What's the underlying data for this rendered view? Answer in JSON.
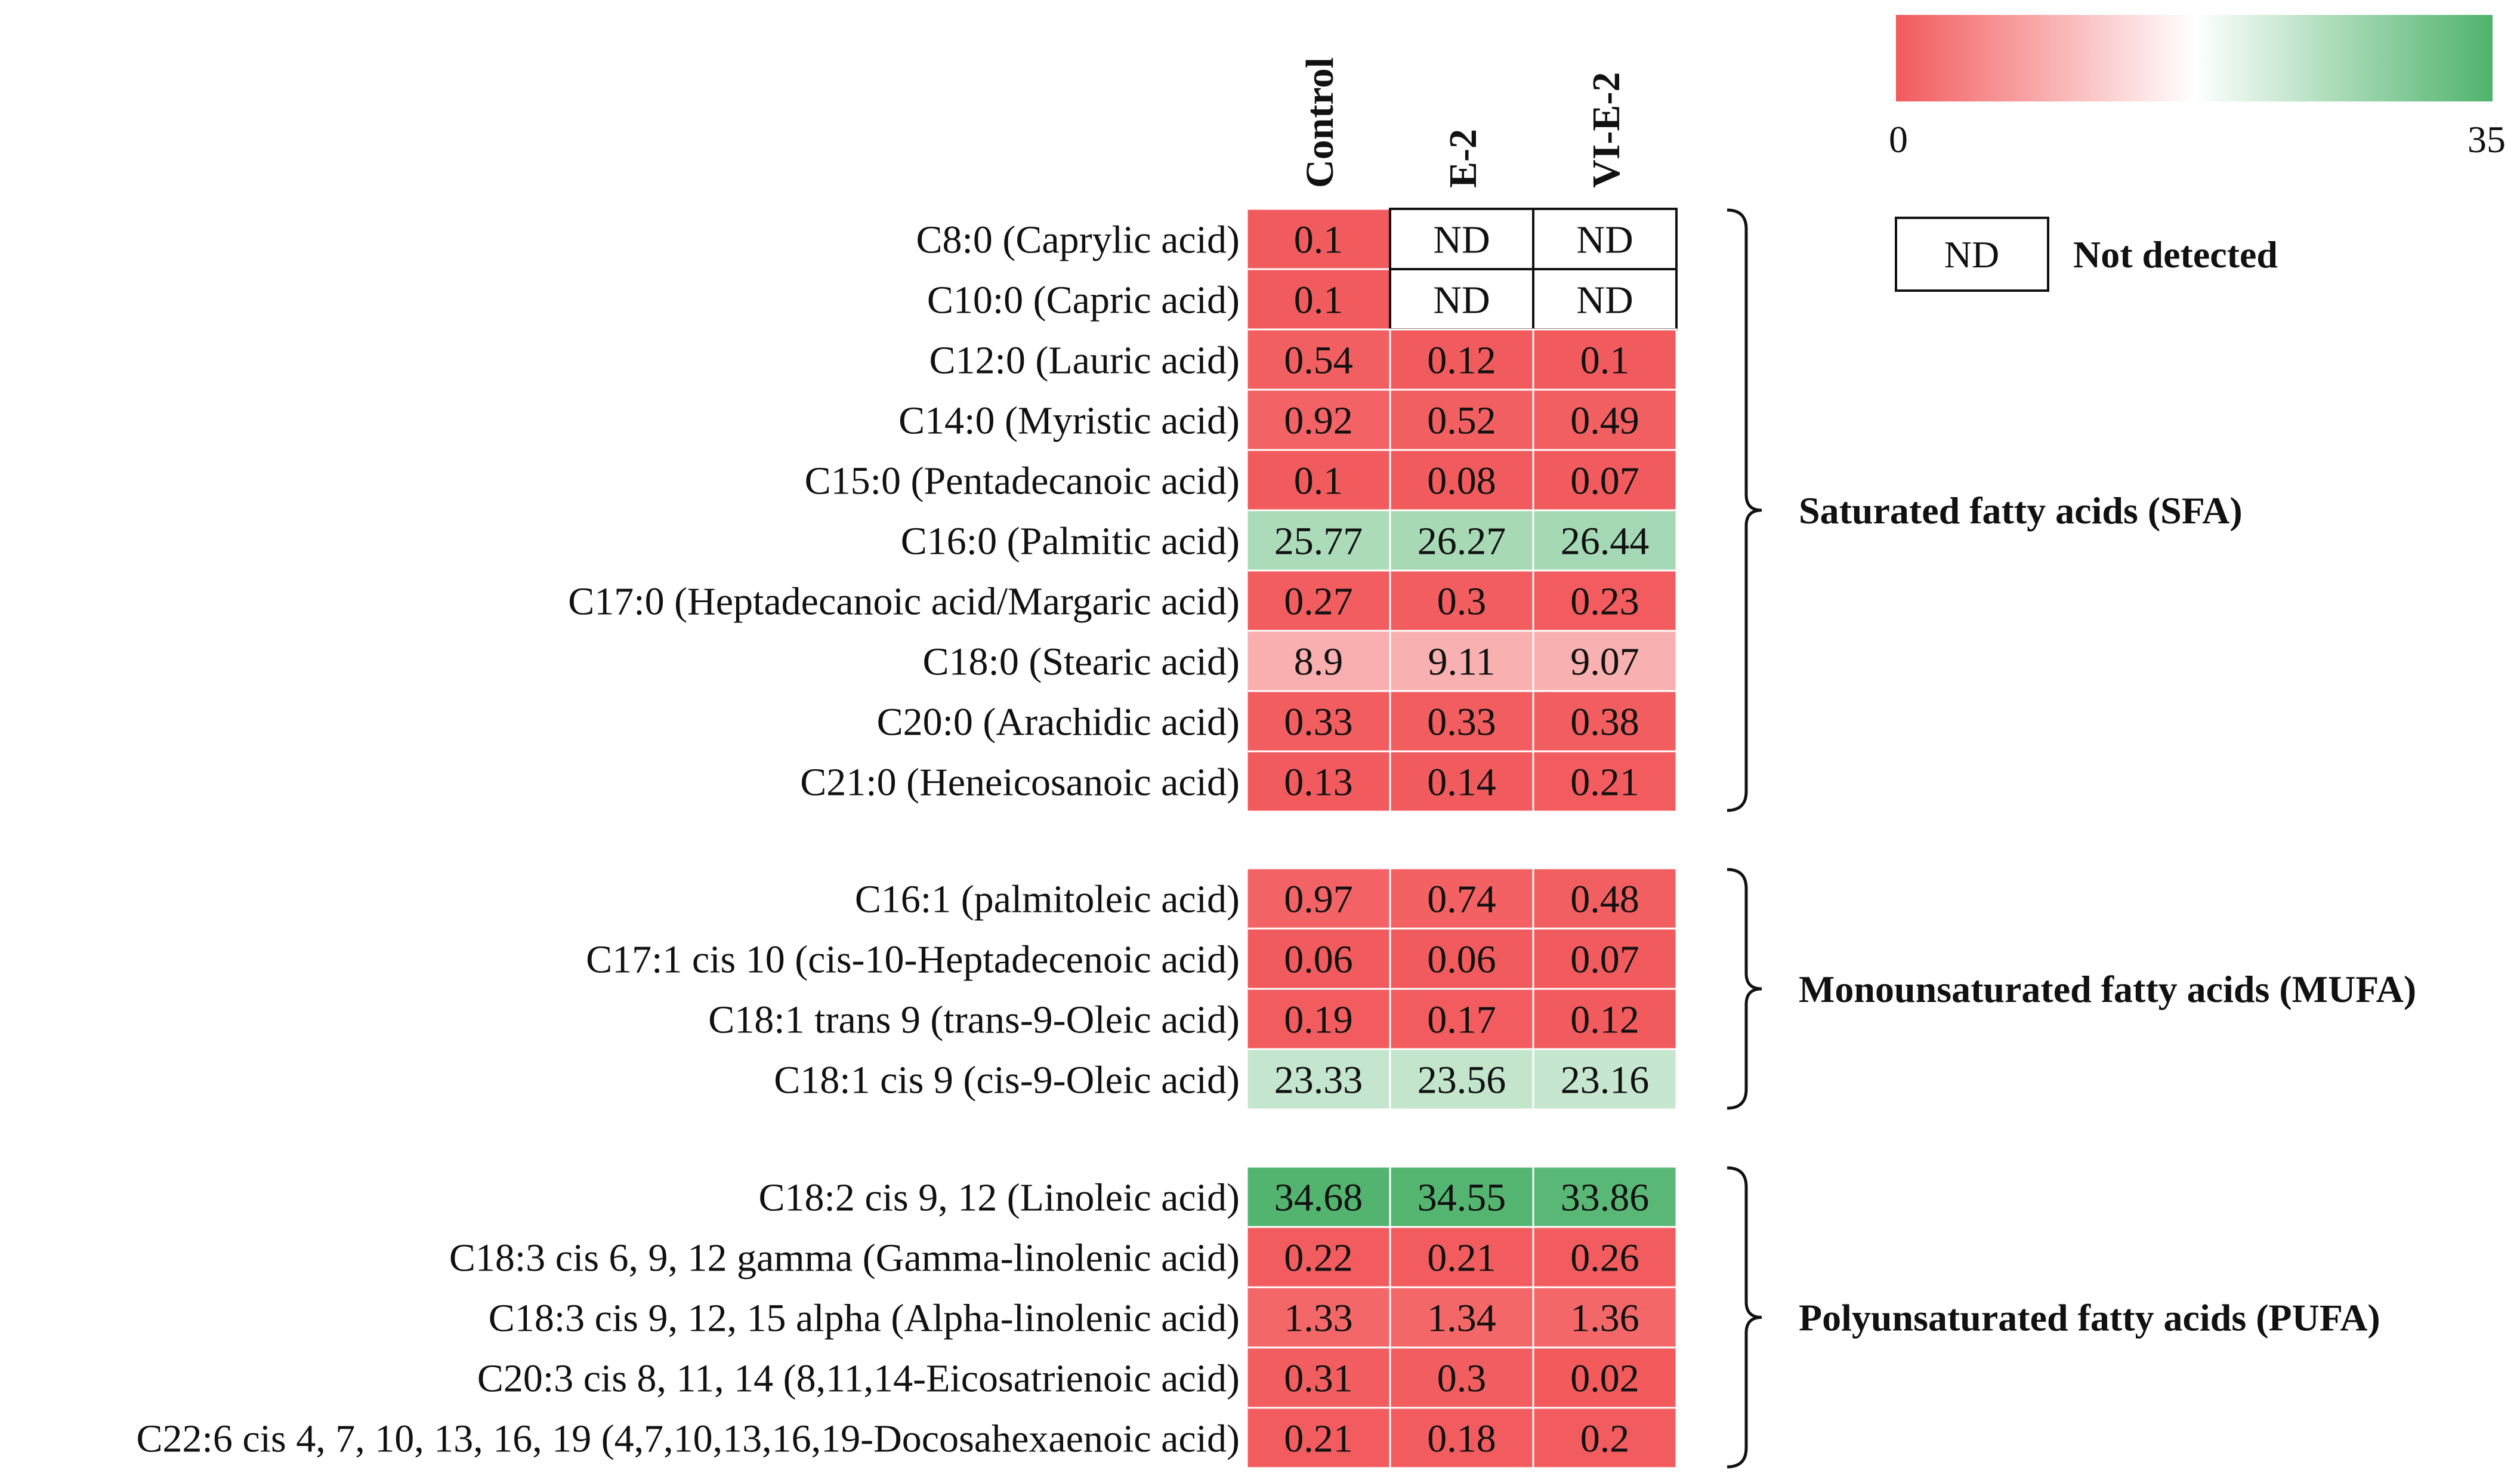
{
  "chart_data": {
    "type": "heatmap",
    "columns": [
      "Control",
      "E-2",
      "VI-E-2"
    ],
    "colorscale": {
      "min": 0,
      "max": 35,
      "min_label": "0",
      "max_label": "35",
      "low_color": "#f25a5c",
      "mid_color": "#ffffff",
      "high_color": "#4fb36c"
    },
    "missing": {
      "code": "ND",
      "label": "Not detected"
    },
    "groups": [
      {
        "label": "Saturated fatty acids (SFA)",
        "rows": [
          {
            "label": "C8:0 (Caprylic acid)",
            "values": [
              0.1,
              null,
              null
            ],
            "display": [
              "0.1",
              "ND",
              "ND"
            ]
          },
          {
            "label": "C10:0 (Capric acid)",
            "values": [
              0.1,
              null,
              null
            ],
            "display": [
              "0.1",
              "ND",
              "ND"
            ]
          },
          {
            "label": "C12:0 (Lauric acid)",
            "values": [
              0.54,
              0.12,
              0.1
            ],
            "display": [
              "0.54",
              "0.12",
              "0.1"
            ]
          },
          {
            "label": "C14:0 (Myristic acid)",
            "values": [
              0.92,
              0.52,
              0.49
            ],
            "display": [
              "0.92",
              "0.52",
              "0.49"
            ]
          },
          {
            "label": "C15:0 (Pentadecanoic acid)",
            "values": [
              0.1,
              0.08,
              0.07
            ],
            "display": [
              "0.1",
              "0.08",
              "0.07"
            ]
          },
          {
            "label": "C16:0 (Palmitic acid)",
            "values": [
              25.77,
              26.27,
              26.44
            ],
            "display": [
              "25.77",
              "26.27",
              "26.44"
            ]
          },
          {
            "label": "C17:0 (Heptadecanoic acid/Margaric acid)",
            "values": [
              0.27,
              0.3,
              0.23
            ],
            "display": [
              "0.27",
              "0.3",
              "0.23"
            ]
          },
          {
            "label": "C18:0 (Stearic acid)",
            "values": [
              8.9,
              9.11,
              9.07
            ],
            "display": [
              "8.9",
              "9.11",
              "9.07"
            ]
          },
          {
            "label": "C20:0 (Arachidic acid)",
            "values": [
              0.33,
              0.33,
              0.38
            ],
            "display": [
              "0.33",
              "0.33",
              "0.38"
            ]
          },
          {
            "label": "C21:0 (Heneicosanoic acid)",
            "values": [
              0.13,
              0.14,
              0.21
            ],
            "display": [
              "0.13",
              "0.14",
              "0.21"
            ]
          }
        ]
      },
      {
        "label": "Monounsaturated fatty acids (MUFA)",
        "rows": [
          {
            "label": "C16:1 (palmitoleic acid)",
            "values": [
              0.97,
              0.74,
              0.48
            ],
            "display": [
              "0.97",
              "0.74",
              "0.48"
            ]
          },
          {
            "label": "C17:1 cis 10 (cis-10-Heptadecenoic acid)",
            "values": [
              0.06,
              0.06,
              0.07
            ],
            "display": [
              "0.06",
              "0.06",
              "0.07"
            ]
          },
          {
            "label": "C18:1 trans 9 (trans-9-Oleic acid)",
            "values": [
              0.19,
              0.17,
              0.12
            ],
            "display": [
              "0.19",
              "0.17",
              "0.12"
            ]
          },
          {
            "label": "C18:1 cis 9 (cis-9-Oleic acid)",
            "values": [
              23.33,
              23.56,
              23.16
            ],
            "display": [
              "23.33",
              "23.56",
              "23.16"
            ]
          }
        ]
      },
      {
        "label": "Polyunsaturated fatty acids (PUFA)",
        "rows": [
          {
            "label": "C18:2 cis 9, 12 (Linoleic acid)",
            "values": [
              34.68,
              34.55,
              33.86
            ],
            "display": [
              "34.68",
              "34.55",
              "33.86"
            ]
          },
          {
            "label": "C18:3 cis 6, 9, 12 gamma (Gamma-linolenic acid)",
            "values": [
              0.22,
              0.21,
              0.26
            ],
            "display": [
              "0.22",
              "0.21",
              "0.26"
            ]
          },
          {
            "label": "C18:3 cis 9, 12, 15 alpha (Alpha-linolenic acid)",
            "values": [
              1.33,
              1.34,
              1.36
            ],
            "display": [
              "1.33",
              "1.34",
              "1.36"
            ]
          },
          {
            "label": "C20:3 cis 8, 11, 14 (8,11,14-Eicosatrienoic acid)",
            "values": [
              0.31,
              0.3,
              0.02
            ],
            "display": [
              "0.31",
              "0.3",
              "0.02"
            ]
          },
          {
            "label": "C22:6 cis 4, 7, 10, 13, 16, 19 (4,7,10,13,16,19-Docosahexaenoic acid)",
            "values": [
              0.21,
              0.18,
              0.2
            ],
            "display": [
              "0.21",
              "0.18",
              "0.2"
            ]
          }
        ]
      }
    ]
  }
}
